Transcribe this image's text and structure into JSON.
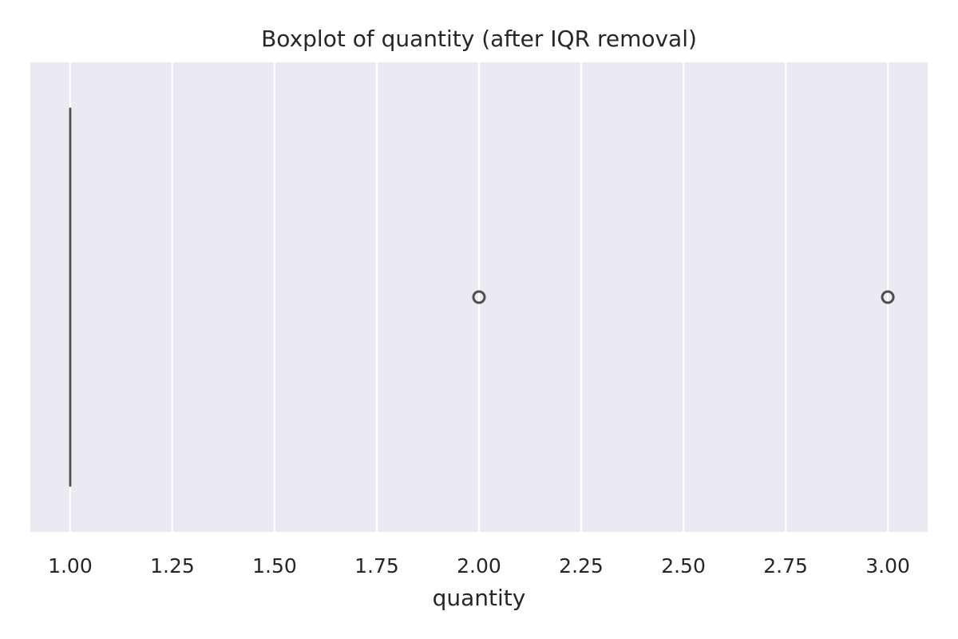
{
  "chart_data": {
    "type": "box",
    "orientation": "horizontal",
    "title": "Boxplot of quantity (after IQR removal)",
    "xlabel": "quantity",
    "ylabel": "",
    "xlim": [
      0.9025,
      3.0975
    ],
    "xticks": [
      1.0,
      1.25,
      1.5,
      1.75,
      2.0,
      2.25,
      2.5,
      2.75,
      3.0
    ],
    "xtick_labels": [
      "1.00",
      "1.25",
      "1.50",
      "1.75",
      "2.00",
      "2.25",
      "2.50",
      "2.75",
      "3.00"
    ],
    "grid": true,
    "box": {
      "min": 1.0,
      "q1": 1.0,
      "median": 1.0,
      "q3": 1.0,
      "max": 1.0,
      "outliers": [
        2.0,
        3.0
      ]
    },
    "colors": {
      "background": "#eaeaf2",
      "grid": "#ffffff",
      "box_line": "#4d4d4d",
      "text": "#262626"
    }
  }
}
